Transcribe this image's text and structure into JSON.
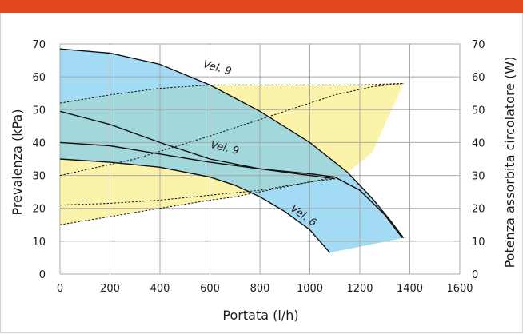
{
  "colors": {
    "accent_bar": "#e4481f",
    "blue_fill": "#7ccbef",
    "yellow_fill": "#fbf19c",
    "grid": "#a8a8a8",
    "curve": "#111111"
  },
  "chart_data": {
    "type": "line",
    "title": "",
    "xlabel": "Portata (l/h)",
    "ylabel": "Prevalenza (kPa)",
    "y2label": "Potenza assorbita circolatore (W)",
    "xlim": [
      0,
      1600
    ],
    "ylim": [
      0,
      70
    ],
    "y2lim": [
      0,
      70
    ],
    "grid": true,
    "x_ticks": [
      "0",
      "200",
      "400",
      "600",
      "800",
      "1000",
      "1200",
      "1400",
      "1600"
    ],
    "y_ticks": [
      "0",
      "10",
      "20",
      "30",
      "40",
      "50",
      "60",
      "70"
    ],
    "y2_ticks": [
      "0",
      "10",
      "20",
      "30",
      "40",
      "50",
      "60",
      "70"
    ],
    "head_curves": [
      {
        "name": "Vel. 9",
        "label": "Vel. 9",
        "label_at": [
          570,
          63
        ],
        "label_rotation": 16,
        "points": [
          [
            0,
            68.5
          ],
          [
            200,
            67.2
          ],
          [
            400,
            63.8
          ],
          [
            600,
            57.5
          ],
          [
            800,
            49.5
          ],
          [
            1000,
            40.0
          ],
          [
            1150,
            31.0
          ],
          [
            1250,
            23.0
          ],
          [
            1320,
            16.5
          ],
          [
            1375,
            11.0
          ]
        ]
      },
      {
        "name": "Vel. 9",
        "label": "Vel. 9",
        "label_at": [
          600,
          38.5
        ],
        "label_rotation": 14,
        "points": [
          [
            0,
            49.5
          ],
          [
            200,
            45.5
          ],
          [
            400,
            40.0
          ],
          [
            600,
            35.0
          ],
          [
            800,
            32.0
          ],
          [
            1000,
            30.5
          ],
          [
            1100,
            29.5
          ],
          [
            1200,
            25.5
          ],
          [
            1300,
            18.0
          ],
          [
            1370,
            11.0
          ]
        ]
      },
      {
        "name": "",
        "label": "",
        "points": [
          [
            0,
            40.0
          ],
          [
            200,
            39.0
          ],
          [
            400,
            36.5
          ],
          [
            600,
            34.0
          ],
          [
            800,
            32.0
          ],
          [
            1000,
            30.0
          ],
          [
            1100,
            29.0
          ]
        ]
      },
      {
        "name": "Vel. 6",
        "label": "Vel. 6",
        "label_at": [
          920,
          19.5
        ],
        "label_rotation": 35,
        "points": [
          [
            0,
            35.0
          ],
          [
            200,
            34.0
          ],
          [
            400,
            32.5
          ],
          [
            600,
            29.5
          ],
          [
            700,
            27.0
          ],
          [
            800,
            23.5
          ],
          [
            900,
            19.0
          ],
          [
            1000,
            13.5
          ],
          [
            1080,
            6.5
          ]
        ]
      }
    ],
    "power_curves": [
      {
        "name": "",
        "points": [
          [
            0,
            52.0
          ],
          [
            200,
            54.5
          ],
          [
            400,
            56.5
          ],
          [
            600,
            57.5
          ],
          [
            800,
            57.5
          ],
          [
            1000,
            57.5
          ],
          [
            1200,
            57.5
          ],
          [
            1375,
            58.0
          ]
        ]
      },
      {
        "name": "",
        "points": [
          [
            0,
            30.0
          ],
          [
            300,
            35.0
          ],
          [
            600,
            42.0
          ],
          [
            900,
            49.5
          ],
          [
            1100,
            54.5
          ],
          [
            1250,
            57.0
          ],
          [
            1375,
            58.0
          ]
        ]
      },
      {
        "name": "",
        "points": [
          [
            0,
            21.0
          ],
          [
            200,
            21.5
          ],
          [
            400,
            22.5
          ],
          [
            600,
            24.0
          ],
          [
            800,
            25.5
          ],
          [
            1000,
            28.0
          ],
          [
            1100,
            29.5
          ]
        ]
      },
      {
        "name": "",
        "points": [
          [
            0,
            15.0
          ],
          [
            200,
            17.5
          ],
          [
            400,
            20.0
          ],
          [
            600,
            22.5
          ],
          [
            700,
            23.5
          ],
          [
            800,
            25.0
          ],
          [
            1000,
            28.0
          ],
          [
            1100,
            29.0
          ]
        ]
      }
    ],
    "blue_region": [
      [
        0,
        68.5
      ],
      [
        200,
        67.2
      ],
      [
        400,
        63.8
      ],
      [
        600,
        57.5
      ],
      [
        800,
        49.5
      ],
      [
        1000,
        40.0
      ],
      [
        1150,
        31.0
      ],
      [
        1250,
        23.0
      ],
      [
        1320,
        16.5
      ],
      [
        1375,
        11.0
      ],
      [
        1080,
        6.5
      ],
      [
        1000,
        13.5
      ],
      [
        900,
        19.0
      ],
      [
        800,
        23.5
      ],
      [
        700,
        27.0
      ],
      [
        600,
        29.5
      ],
      [
        400,
        32.5
      ],
      [
        200,
        34.0
      ],
      [
        0,
        35.0
      ]
    ],
    "yellow_region": [
      [
        0,
        52.0
      ],
      [
        200,
        54.5
      ],
      [
        400,
        56.5
      ],
      [
        600,
        57.5
      ],
      [
        800,
        57.5
      ],
      [
        1000,
        57.5
      ],
      [
        1200,
        57.5
      ],
      [
        1375,
        58.0
      ],
      [
        1250,
        37.0
      ],
      [
        1120,
        29.0
      ],
      [
        1000,
        28.0
      ],
      [
        800,
        25.0
      ],
      [
        700,
        23.5
      ],
      [
        600,
        22.5
      ],
      [
        400,
        20.0
      ],
      [
        200,
        17.5
      ],
      [
        0,
        15.0
      ]
    ]
  }
}
